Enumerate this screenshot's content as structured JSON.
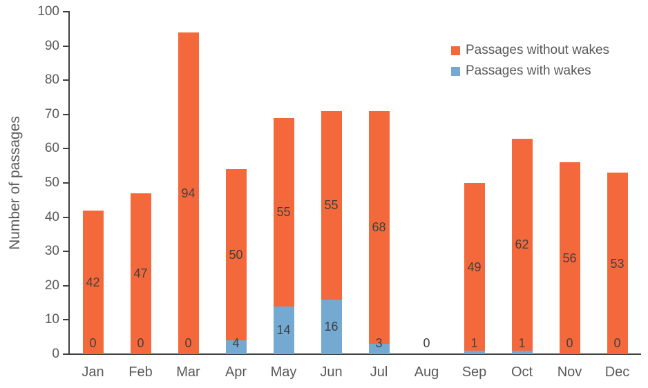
{
  "chart_data": {
    "type": "bar",
    "stacked": true,
    "categories": [
      "Jan",
      "Feb",
      "Mar",
      "Apr",
      "May",
      "Jun",
      "Jul",
      "Aug",
      "Sep",
      "Oct",
      "Nov",
      "Dec"
    ],
    "series": [
      {
        "name": "Passages without wakes",
        "color": "#F4693C",
        "values": [
          42,
          47,
          94,
          50,
          55,
          55,
          68,
          0,
          49,
          62,
          56,
          53
        ]
      },
      {
        "name": "Passages with wakes",
        "color": "#74A9D1",
        "values": [
          0,
          0,
          0,
          4,
          14,
          16,
          3,
          0,
          1,
          1,
          0,
          0
        ]
      }
    ],
    "title": "",
    "xlabel": "",
    "ylabel": "Number of passages",
    "ylim": [
      0,
      100
    ],
    "yticks": [
      0,
      10,
      20,
      30,
      40,
      50,
      60,
      70,
      80,
      90,
      100
    ],
    "grid": "off",
    "legend_position": "top-right",
    "data_labels": "shown (zero labels shown for with-wakes series; without-wakes label hidden only for Aug which is 0)",
    "axis_color": "#404040",
    "tick_label_color": "#595959",
    "data_label_color": "#404040"
  }
}
